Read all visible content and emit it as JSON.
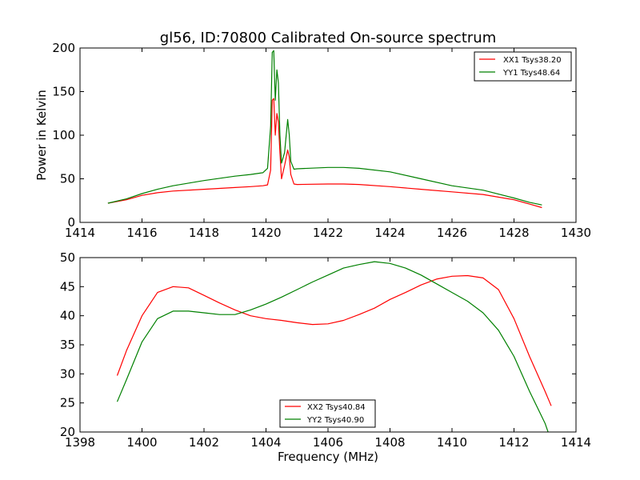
{
  "chart_data": [
    {
      "type": "line",
      "title": "gl56, ID:70800 Calibrated On-source spectrum",
      "xlabel": "",
      "ylabel": "Power in Kelvin",
      "xlim": [
        1414,
        1430
      ],
      "ylim": [
        0,
        200
      ],
      "xticks": [
        "1414",
        "1416",
        "1418",
        "1420",
        "1422",
        "1424",
        "1426",
        "1428",
        "1430"
      ],
      "yticks": [
        "0",
        "50",
        "100",
        "150",
        "200"
      ],
      "grid": false,
      "legend_position": "top-right",
      "series": [
        {
          "name": "XX1 Tsys38.20",
          "color": "#ff0000",
          "x": [
            1414.9,
            1415.5,
            1416,
            1416.5,
            1417,
            1418,
            1419,
            1419.5,
            1419.9,
            1420.05,
            1420.15,
            1420.2,
            1420.25,
            1420.3,
            1420.35,
            1420.4,
            1420.45,
            1420.5,
            1420.6,
            1420.7,
            1420.75,
            1420.8,
            1420.9,
            1421,
            1422,
            1422.5,
            1423,
            1424,
            1425,
            1426,
            1427,
            1428,
            1428.5,
            1428.9
          ],
          "y": [
            22,
            26,
            31,
            34,
            36,
            38,
            40,
            41,
            42,
            43,
            60,
            140,
            142,
            100,
            125,
            115,
            80,
            50,
            65,
            83,
            75,
            55,
            44,
            43.5,
            44,
            44,
            43.5,
            41,
            38,
            35,
            32,
            26,
            21,
            17
          ]
        },
        {
          "name": "YY1 Tsys48.64",
          "color": "#008000",
          "x": [
            1414.9,
            1415.5,
            1416,
            1416.5,
            1417,
            1418,
            1419,
            1419.5,
            1419.9,
            1420.05,
            1420.15,
            1420.2,
            1420.25,
            1420.3,
            1420.35,
            1420.4,
            1420.45,
            1420.5,
            1420.6,
            1420.7,
            1420.75,
            1420.8,
            1420.9,
            1421,
            1422,
            1422.5,
            1423,
            1424,
            1425,
            1426,
            1427,
            1428,
            1428.5,
            1428.9
          ],
          "y": [
            22,
            27,
            33,
            38,
            42,
            48,
            53,
            55,
            57,
            62,
            110,
            195,
            197,
            140,
            175,
            160,
            100,
            68,
            80,
            118,
            100,
            70,
            61,
            61.5,
            63,
            63,
            62,
            58,
            50,
            42,
            37,
            28,
            23,
            20
          ]
        }
      ]
    },
    {
      "type": "line",
      "title": "",
      "xlabel": "Frequency (MHz)",
      "ylabel": "",
      "xlim": [
        1398,
        1414
      ],
      "ylim": [
        20,
        50
      ],
      "xticks": [
        "1398",
        "1400",
        "1402",
        "1404",
        "1406",
        "1408",
        "1410",
        "1412",
        "1414"
      ],
      "yticks": [
        "20",
        "25",
        "30",
        "35",
        "40",
        "45",
        "50"
      ],
      "grid": false,
      "legend_position": "bottom-center",
      "series": [
        {
          "name": "XX2 Tsys40.84",
          "color": "#ff0000",
          "x": [
            1399.2,
            1399.5,
            1400,
            1400.5,
            1401,
            1401.5,
            1402,
            1402.5,
            1403,
            1403.5,
            1404,
            1404.5,
            1405,
            1405.5,
            1406,
            1406.5,
            1407,
            1407.5,
            1408,
            1408.5,
            1409,
            1409.5,
            1410,
            1410.5,
            1411,
            1411.5,
            1412,
            1412.5,
            1413,
            1413.2
          ],
          "y": [
            29.7,
            34,
            40,
            44,
            45,
            44.8,
            43.5,
            42.2,
            41,
            40,
            39.5,
            39.2,
            38.8,
            38.5,
            38.6,
            39.2,
            40.2,
            41.3,
            42.8,
            44,
            45.3,
            46.3,
            46.8,
            46.9,
            46.5,
            44.5,
            39.5,
            33,
            27,
            24.5
          ]
        },
        {
          "name": "YY2 Tsys40.90",
          "color": "#008000",
          "x": [
            1399.2,
            1399.5,
            1400,
            1400.5,
            1401,
            1401.5,
            1402,
            1402.5,
            1403,
            1403.5,
            1404,
            1404.5,
            1405,
            1405.5,
            1406,
            1406.5,
            1407,
            1407.5,
            1408,
            1408.5,
            1409,
            1409.5,
            1410,
            1410.5,
            1411,
            1411.5,
            1412,
            1412.5,
            1413,
            1413.1
          ],
          "y": [
            25.2,
            29,
            35.5,
            39.5,
            40.8,
            40.8,
            40.5,
            40.2,
            40.2,
            41,
            42,
            43.2,
            44.5,
            45.8,
            47,
            48.2,
            48.8,
            49.3,
            49,
            48.2,
            47,
            45.5,
            44,
            42.5,
            40.5,
            37.5,
            33,
            27,
            21.5,
            20
          ]
        }
      ]
    }
  ]
}
